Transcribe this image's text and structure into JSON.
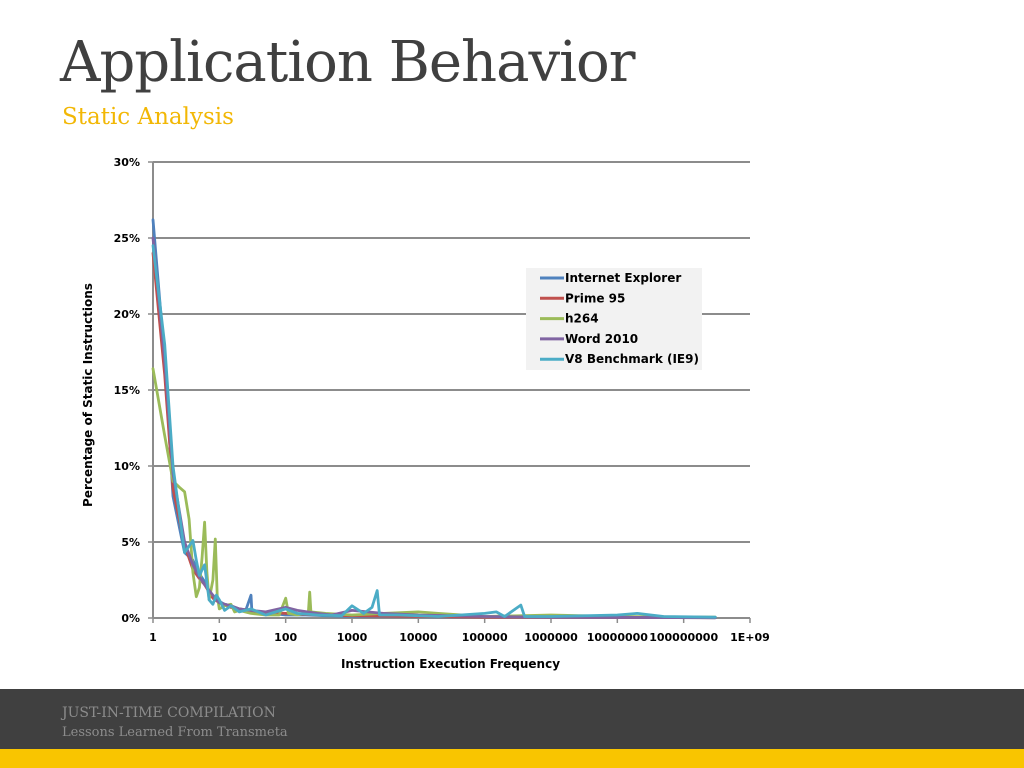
{
  "slide": {
    "title": "Application Behavior",
    "subtitle": "Static Analysis"
  },
  "footer": {
    "title": "JUST-IN-TIME COMPILATION",
    "subtitle": "Lessons Learned From Transmeta"
  },
  "colors": {
    "title": "#404040",
    "accent": "#f2b705",
    "footer_bg": "#404040",
    "footer_text": "#8c8c8c",
    "stripe": "#f9c500"
  },
  "chart_data": {
    "type": "line",
    "xscale": "log10",
    "xlim": [
      1,
      1000000000
    ],
    "ylim": [
      0,
      30
    ],
    "x_ticks": [
      "1",
      "10",
      "100",
      "1000",
      "10000",
      "100000",
      "1000000",
      "10000000",
      "100000000",
      "1E+09"
    ],
    "y_ticks": [
      "0%",
      "5%",
      "10%",
      "15%",
      "20%",
      "25%",
      "30%"
    ],
    "xlabel": "Instruction Execution Frequency",
    "ylabel": "Percentage of Static Instructions",
    "grid": "horizontal",
    "legend_position": "upper-right",
    "series": [
      {
        "name": "Internet Explorer",
        "color": "#4f81bd",
        "points": [
          [
            1,
            26.2
          ],
          [
            1.5,
            17
          ],
          [
            2,
            8
          ],
          [
            3,
            4.3
          ],
          [
            4,
            3.8
          ],
          [
            5,
            2.9
          ],
          [
            6,
            2.4
          ],
          [
            7,
            1.6
          ],
          [
            8,
            1.4
          ],
          [
            10,
            1.1
          ],
          [
            12,
            0.9
          ],
          [
            15,
            0.8
          ],
          [
            20,
            0.6
          ],
          [
            25,
            0.5
          ],
          [
            30,
            1.5
          ],
          [
            31,
            0.4
          ],
          [
            40,
            0.35
          ],
          [
            60,
            0.3
          ],
          [
            100,
            0.2
          ],
          [
            200,
            0.2
          ],
          [
            400,
            0.15
          ],
          [
            1000,
            0.1
          ],
          [
            5000,
            0.1
          ],
          [
            50000,
            0.05
          ],
          [
            1000000,
            0.05
          ],
          [
            100000000,
            0.03
          ],
          [
            300000000,
            0.02
          ]
        ]
      },
      {
        "name": "Prime 95",
        "color": "#c0504d",
        "points": [
          [
            1,
            24
          ],
          [
            1.5,
            16
          ],
          [
            2,
            8.5
          ],
          [
            3,
            4.8
          ],
          [
            4,
            3.2
          ],
          [
            5,
            2.6
          ],
          [
            6,
            2.2
          ],
          [
            8,
            1.3
          ],
          [
            10,
            1
          ],
          [
            15,
            0.7
          ],
          [
            20,
            0.6
          ],
          [
            40,
            0.4
          ],
          [
            100,
            0.3
          ],
          [
            300,
            0.2
          ],
          [
            1000,
            0.15
          ],
          [
            10000,
            0.1
          ],
          [
            100000,
            0.05
          ],
          [
            10000000,
            0.03
          ],
          [
            300000000,
            0.02
          ]
        ]
      },
      {
        "name": "h264",
        "color": "#9bbb59",
        "points": [
          [
            1,
            16.4
          ],
          [
            1.5,
            12
          ],
          [
            2,
            9
          ],
          [
            2.5,
            8.6
          ],
          [
            3,
            8.3
          ],
          [
            3.5,
            6.5
          ],
          [
            4,
            3
          ],
          [
            4.5,
            1.4
          ],
          [
            5,
            2
          ],
          [
            5.5,
            4
          ],
          [
            6,
            6.3
          ],
          [
            6.5,
            3
          ],
          [
            7,
            1.2
          ],
          [
            8,
            2.5
          ],
          [
            8.7,
            5.2
          ],
          [
            9.3,
            1.5
          ],
          [
            10,
            0.6
          ],
          [
            12,
            0.8
          ],
          [
            15,
            0.9
          ],
          [
            17,
            0.4
          ],
          [
            20,
            0.5
          ],
          [
            30,
            0.3
          ],
          [
            50,
            0.2
          ],
          [
            80,
            0.2
          ],
          [
            100,
            1.3
          ],
          [
            110,
            0.3
          ],
          [
            150,
            0.2
          ],
          [
            220,
            0.4
          ],
          [
            230,
            1.7
          ],
          [
            240,
            0.4
          ],
          [
            400,
            0.3
          ],
          [
            1000,
            0.2
          ],
          [
            3000,
            0.3
          ],
          [
            10000,
            0.4
          ],
          [
            20000,
            0.3
          ],
          [
            100000,
            0.1
          ],
          [
            1000000,
            0.2
          ],
          [
            10000000,
            0.1
          ],
          [
            300000000,
            0.05
          ]
        ]
      },
      {
        "name": "Word 2010",
        "color": "#8064a2",
        "points": [
          [
            1,
            25
          ],
          [
            1.5,
            17
          ],
          [
            2,
            9.5
          ],
          [
            3,
            5
          ],
          [
            4,
            3.5
          ],
          [
            5,
            2.7
          ],
          [
            6,
            2.2
          ],
          [
            8,
            1.5
          ],
          [
            10,
            1
          ],
          [
            15,
            0.8
          ],
          [
            20,
            0.6
          ],
          [
            30,
            0.5
          ],
          [
            50,
            0.4
          ],
          [
            100,
            0.7
          ],
          [
            150,
            0.5
          ],
          [
            300,
            0.3
          ],
          [
            500,
            0.2
          ],
          [
            1000,
            0.5
          ],
          [
            3000,
            0.3
          ],
          [
            10000,
            0.2
          ],
          [
            100000,
            0.1
          ],
          [
            1000000,
            0.05
          ],
          [
            300000000,
            0.02
          ]
        ]
      },
      {
        "name": "V8 Benchmark (IE9)",
        "color": "#4bacc6",
        "points": [
          [
            1,
            24.5
          ],
          [
            1.5,
            18
          ],
          [
            2,
            10
          ],
          [
            3,
            4.3
          ],
          [
            4,
            5.1
          ],
          [
            4.5,
            3.8
          ],
          [
            5,
            2.8
          ],
          [
            6,
            3.5
          ],
          [
            7,
            1.2
          ],
          [
            8,
            0.9
          ],
          [
            9,
            1.5
          ],
          [
            10,
            1.2
          ],
          [
            12,
            0.5
          ],
          [
            15,
            0.8
          ],
          [
            20,
            0.4
          ],
          [
            30,
            0.6
          ],
          [
            50,
            0.2
          ],
          [
            100,
            0.6
          ],
          [
            150,
            0.3
          ],
          [
            300,
            0.2
          ],
          [
            700,
            0.15
          ],
          [
            1000,
            0.8
          ],
          [
            1500,
            0.3
          ],
          [
            2000,
            0.7
          ],
          [
            2400,
            1.8
          ],
          [
            2600,
            0.2
          ],
          [
            5000,
            0.2
          ],
          [
            20000,
            0.1
          ],
          [
            100000,
            0.3
          ],
          [
            150000,
            0.4
          ],
          [
            200000,
            0.1
          ],
          [
            350000,
            0.85
          ],
          [
            400000,
            0.1
          ],
          [
            1000000,
            0.1
          ],
          [
            10000000,
            0.2
          ],
          [
            20000000,
            0.3
          ],
          [
            50000000,
            0.1
          ],
          [
            300000000,
            0.05
          ]
        ]
      }
    ]
  }
}
